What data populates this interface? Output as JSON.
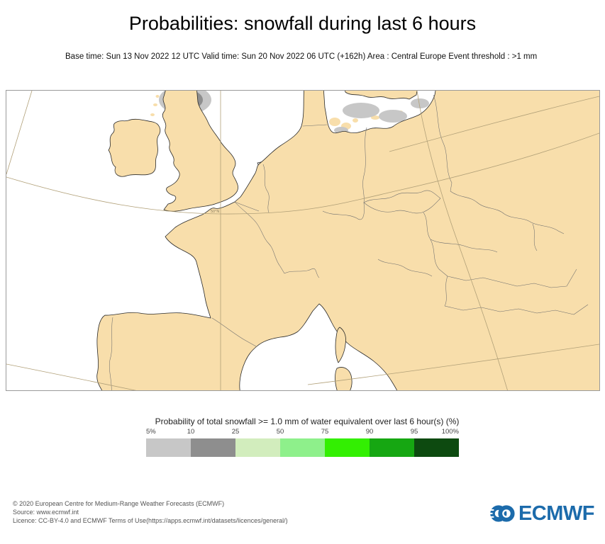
{
  "header": {
    "title": "Probabilities: snowfall during last 6 hours",
    "subtitle": "Base time: Sun 13 Nov 2022 12 UTC Valid time: Sun 20 Nov 2022 06 UTC (+162h) Area : Central Europe Event threshold : >1 mm"
  },
  "map": {
    "latitude_label": "50°N",
    "colors": {
      "land": "#f8deab",
      "sea": "#ffffff",
      "coastline": "#2a2a2a",
      "country_border": "#6e6e6e",
      "graticule": "#b1a078",
      "prob_5_10": "#c7c7c7",
      "prob_10_25": "#8e8e8e",
      "prob_25_50": "#d2edbd",
      "prob_50_75": "#8ef08b"
    }
  },
  "legend": {
    "title": "Probability of total snowfall >= 1.0 mm of water equivalent over last 6 hour(s) (%)",
    "ticks": [
      "5%",
      "10",
      "25",
      "50",
      "75",
      "90",
      "95",
      "100%"
    ],
    "colors": [
      "#c7c7c7",
      "#8e8e8e",
      "#d2edbd",
      "#8ef08b",
      "#33ef02",
      "#16a712",
      "#0d4a10"
    ]
  },
  "footer": {
    "copyright": "© 2020 European Centre for Medium-Range Weather Forecasts (ECMWF)",
    "source": "Source: www.ecmwf.int",
    "licence": "Licence: CC-BY-4.0 and ECMWF Terms of Use(https://apps.ecmwf.int/datasets/licences/general/)",
    "logo_text": "ECMWF",
    "logo_color": "#1c6bab"
  }
}
